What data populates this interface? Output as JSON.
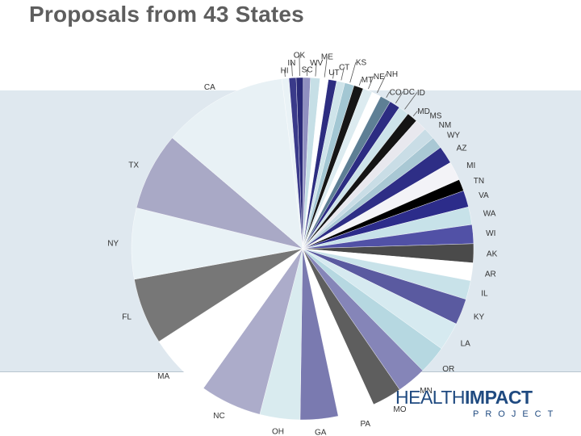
{
  "page": {
    "title": "Proposals from 43 States"
  },
  "logo": {
    "health": "HEALTH",
    "impact": "IMPACT",
    "project": "PROJECT"
  },
  "chart_data": {
    "type": "pie",
    "title": "Proposals from 43 States",
    "start_label": "HI",
    "direction": "clockwise",
    "slices": [
      {
        "label": "HI",
        "value": 0.6,
        "color": "#e9f2f6"
      },
      {
        "label": "IN",
        "value": 0.6,
        "color": "#3a3a8a"
      },
      {
        "label": "OK",
        "value": 0.6,
        "color": "#2a2a78"
      },
      {
        "label": "SC",
        "value": 0.6,
        "color": "#8f8fc0"
      },
      {
        "label": "WV",
        "value": 0.8,
        "color": "#c6dfe6"
      },
      {
        "label": "ME",
        "value": 0.7,
        "color": "#ffffff"
      },
      {
        "label": "UT",
        "value": 0.7,
        "color": "#2d2d80"
      },
      {
        "label": "CT",
        "value": 0.7,
        "color": "#cfe4ea"
      },
      {
        "label": "KS",
        "value": 0.8,
        "color": "#a3c7d3"
      },
      {
        "label": "MT",
        "value": 0.8,
        "color": "#161616"
      },
      {
        "label": "NE",
        "value": 0.8,
        "color": "#dcebf0"
      },
      {
        "label": "NH",
        "value": 0.8,
        "color": "#ffffff"
      },
      {
        "label": "CO",
        "value": 0.9,
        "color": "#5e7f95"
      },
      {
        "label": "DC",
        "value": 0.9,
        "color": "#2c2c82"
      },
      {
        "label": "ID",
        "value": 0.9,
        "color": "#cde3ea"
      },
      {
        "label": "MD",
        "value": 0.9,
        "color": "#141414"
      },
      {
        "label": "MS",
        "value": 1.0,
        "color": "#e8e8ee"
      },
      {
        "label": "NM",
        "value": 1.0,
        "color": "#c9dde6"
      },
      {
        "label": "WY",
        "value": 1.0,
        "color": "#a9c8d4"
      },
      {
        "label": "AZ",
        "value": 1.5,
        "color": "#2e2e86"
      },
      {
        "label": "MI",
        "value": 1.6,
        "color": "#f3f3f7"
      },
      {
        "label": "TN",
        "value": 1.0,
        "color": "#000000"
      },
      {
        "label": "VA",
        "value": 1.4,
        "color": "#2c2c8a"
      },
      {
        "label": "WA",
        "value": 1.5,
        "color": "#c7e2e9"
      },
      {
        "label": "WI",
        "value": 1.6,
        "color": "#5151a6"
      },
      {
        "label": "AK",
        "value": 1.6,
        "color": "#4a4a4a"
      },
      {
        "label": "AR",
        "value": 1.5,
        "color": "#ffffff"
      },
      {
        "label": "IL",
        "value": 1.6,
        "color": "#c8e2e9"
      },
      {
        "label": "KY",
        "value": 2.2,
        "color": "#5a5aa0"
      },
      {
        "label": "LA",
        "value": 2.4,
        "color": "#d6eaf0"
      },
      {
        "label": "OR",
        "value": 2.4,
        "color": "#b6d8e1"
      },
      {
        "label": "MN",
        "value": 2.5,
        "color": "#8585b8"
      },
      {
        "label": "MO",
        "value": 2.5,
        "color": "#5e5e5e"
      },
      {
        "label": "PA",
        "value": 3.1,
        "color": "#ffffff"
      },
      {
        "label": "GA",
        "value": 3.2,
        "color": "#7a7ab0"
      },
      {
        "label": "OH",
        "value": 3.4,
        "color": "#d9ebef"
      },
      {
        "label": "NC",
        "value": 5.2,
        "color": "#acacca"
      },
      {
        "label": "MA",
        "value": 5.4,
        "color": "#ffffff"
      },
      {
        "label": "FL",
        "value": 5.6,
        "color": "#777777"
      },
      {
        "label": "NY",
        "value": 6.0,
        "color": "#e9f2f6"
      },
      {
        "label": "TX",
        "value": 6.6,
        "color": "#a9a9c6"
      },
      {
        "label": "CA",
        "value": 10.6,
        "color": "#e8f1f5"
      }
    ]
  }
}
